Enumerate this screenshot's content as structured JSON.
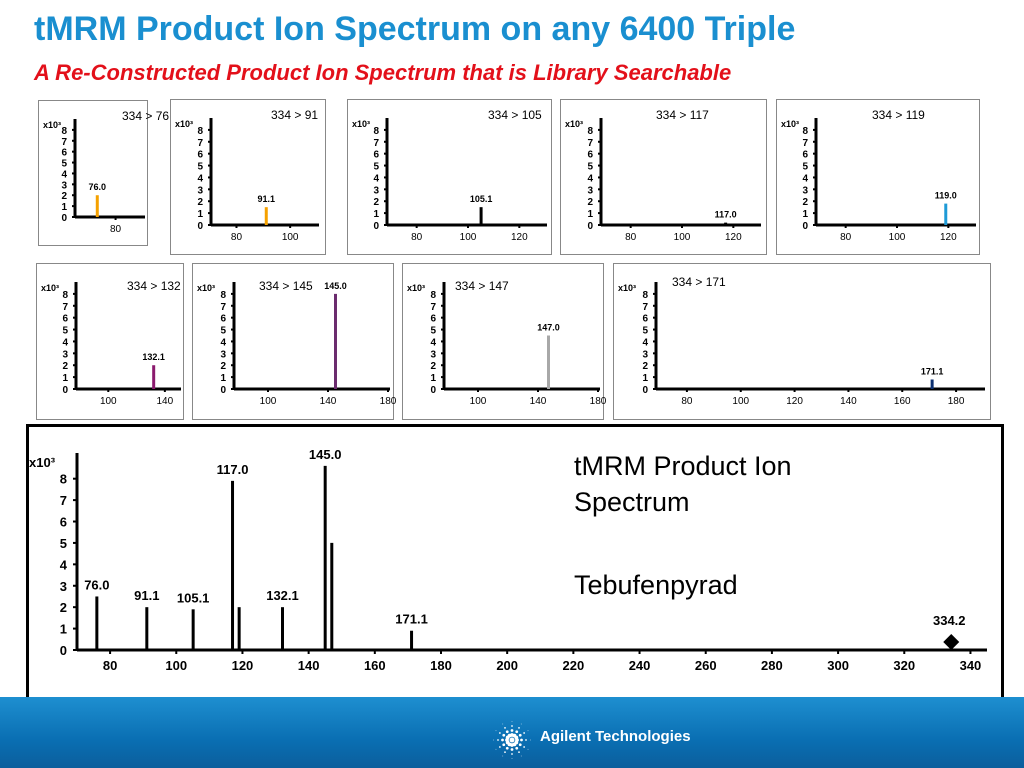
{
  "header": {
    "title": "tMRM Product Ion Spectrum on any 6400 Triple",
    "subtitle": "A Re-Constructed Product Ion Spectrum that is Library Searchable"
  },
  "main_text": {
    "line1": "tMRM Product Ion Spectrum",
    "compound": "Tebufenpyrad"
  },
  "footer": {
    "logo_text": "Agilent Technologies"
  },
  "chart_data": [
    {
      "type": "bar",
      "title": "334 > 76",
      "y_multiplier_label": "x10³",
      "yticks": [
        "8",
        "7",
        "6",
        "5",
        "4",
        "3",
        "2",
        "1",
        "0"
      ],
      "xticks": [
        80
      ],
      "ylim": [
        0,
        9
      ],
      "peaks": [
        {
          "x": 76.0,
          "y": 2.0,
          "label": "76.0",
          "color": "#f5a100"
        }
      ]
    },
    {
      "type": "bar",
      "title": "334 > 91",
      "y_multiplier_label": "x10³",
      "yticks": [
        "8",
        "7",
        "6",
        "5",
        "4",
        "3",
        "2",
        "1",
        "0"
      ],
      "xticks": [
        80,
        100
      ],
      "ylim": [
        0,
        9
      ],
      "peaks": [
        {
          "x": 91.1,
          "y": 1.5,
          "label": "91.1",
          "color": "#f5a100"
        }
      ]
    },
    {
      "type": "bar",
      "title": "334 > 105",
      "y_multiplier_label": "x10³",
      "yticks": [
        "8",
        "7",
        "6",
        "5",
        "4",
        "3",
        "2",
        "1",
        "0"
      ],
      "xticks": [
        80,
        100,
        120
      ],
      "ylim": [
        0,
        9
      ],
      "peaks": [
        {
          "x": 105.1,
          "y": 1.5,
          "label": "105.1",
          "color": "#000000"
        }
      ]
    },
    {
      "type": "bar",
      "title": "334 > 117",
      "y_multiplier_label": "x10³",
      "yticks": [
        "8",
        "7",
        "6",
        "5",
        "4",
        "3",
        "2",
        "1",
        "0"
      ],
      "xticks": [
        80,
        100,
        120
      ],
      "ylim": [
        0,
        9
      ],
      "peaks": [
        {
          "x": 117.0,
          "y": 0.2,
          "label": "117.0",
          "color": "#000000"
        }
      ]
    },
    {
      "type": "bar",
      "title": "334 > 119",
      "y_multiplier_label": "x10³",
      "yticks": [
        "8",
        "7",
        "6",
        "5",
        "4",
        "3",
        "2",
        "1",
        "0"
      ],
      "xticks": [
        80,
        100,
        120
      ],
      "ylim": [
        0,
        9
      ],
      "peaks": [
        {
          "x": 119.0,
          "y": 1.8,
          "label": "119.0",
          "color": "#1e9ad6"
        }
      ]
    },
    {
      "type": "bar",
      "title": "334 > 132",
      "y_multiplier_label": "x10³",
      "yticks": [
        "8",
        "7",
        "6",
        "5",
        "4",
        "3",
        "2",
        "1",
        "0"
      ],
      "xticks": [
        100,
        140
      ],
      "ylim": [
        0,
        9
      ],
      "peaks": [
        {
          "x": 132.1,
          "y": 2.0,
          "label": "132.1",
          "color": "#8b1a6e"
        }
      ]
    },
    {
      "type": "bar",
      "title": "334 > 145",
      "y_multiplier_label": "x10³",
      "yticks": [
        "8",
        "7",
        "6",
        "5",
        "4",
        "3",
        "2",
        "1",
        "0"
      ],
      "xticks": [
        100,
        140,
        180
      ],
      "ylim": [
        0,
        9
      ],
      "peaks": [
        {
          "x": 145.0,
          "y": 8.0,
          "label": "145.0",
          "color": "#6b2c6e"
        }
      ]
    },
    {
      "type": "bar",
      "title": "334 > 147",
      "y_multiplier_label": "x10³",
      "yticks": [
        "8",
        "7",
        "6",
        "5",
        "4",
        "3",
        "2",
        "1",
        "0"
      ],
      "xticks": [
        100,
        140,
        180
      ],
      "ylim": [
        0,
        9
      ],
      "peaks": [
        {
          "x": 147.0,
          "y": 4.5,
          "label": "147.0",
          "color": "#a8a8a8"
        }
      ]
    },
    {
      "type": "bar",
      "title": "334 > 171",
      "y_multiplier_label": "x10³",
      "yticks": [
        "8",
        "7",
        "6",
        "5",
        "4",
        "3",
        "2",
        "1",
        "0"
      ],
      "xticks": [
        80,
        100,
        120,
        140,
        160,
        180
      ],
      "ylim": [
        0,
        9
      ],
      "peaks": [
        {
          "x": 171.1,
          "y": 0.8,
          "label": "171.1",
          "color": "#0c2f70"
        }
      ]
    },
    {
      "type": "bar",
      "title": "",
      "y_multiplier_label": "x10³",
      "yticks": [
        "8",
        "7",
        "6",
        "5",
        "4",
        "3",
        "2",
        "1",
        "0"
      ],
      "xticks": [
        80,
        100,
        120,
        140,
        160,
        180,
        200,
        220,
        240,
        260,
        280,
        300,
        320,
        340
      ],
      "xlim": [
        70,
        345
      ],
      "ylim": [
        0,
        9.2
      ],
      "peaks": [
        {
          "x": 76.0,
          "y": 2.5,
          "label": "76.0"
        },
        {
          "x": 91.1,
          "y": 2.0,
          "label": "91.1"
        },
        {
          "x": 105.1,
          "y": 1.9,
          "label": "105.1"
        },
        {
          "x": 117.0,
          "y": 7.9,
          "label": "117.0"
        },
        {
          "x": 119.0,
          "y": 2.0,
          "label": ""
        },
        {
          "x": 132.1,
          "y": 2.0,
          "label": "132.1"
        },
        {
          "x": 145.0,
          "y": 8.6,
          "label": "145.0"
        },
        {
          "x": 147.0,
          "y": 5.0,
          "label": ""
        },
        {
          "x": 171.1,
          "y": 0.9,
          "label": "171.1"
        }
      ],
      "precursor": {
        "x": 334.2,
        "label": "334.2"
      }
    }
  ]
}
